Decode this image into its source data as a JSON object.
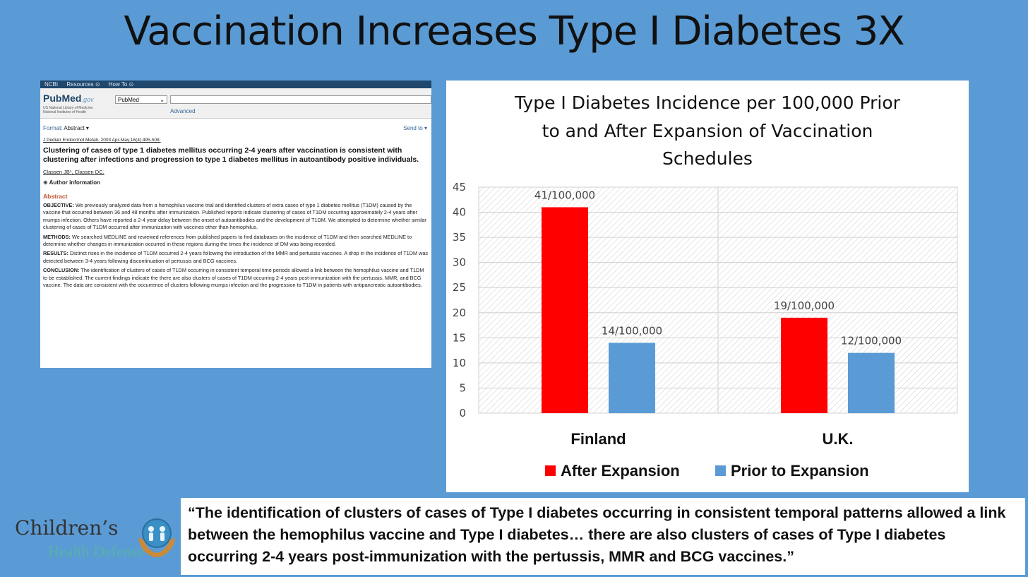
{
  "slide": {
    "title": "Vaccination Increases Type I Diabetes 3X",
    "quote": "“The identification of clusters of cases of Type I diabetes occurring in consistent temporal patterns allowed a link between the hemophilus vaccine and Type I diabetes…  there are also clusters of cases of Type I diabetes occurring 2-4 years post-immunization with the pertussis, MMR and BCG vaccines.”"
  },
  "logo": {
    "line1": "Children’s",
    "line2": "Health Defense"
  },
  "pubmed": {
    "topbar": [
      "NCBI",
      "Resources ⊙",
      "How To ⊙"
    ],
    "logo": "PubMed",
    "logo_suffix": ".gov",
    "org_line": "US National Library of Medicine National Institutes of Health",
    "db_select": "PubMed",
    "advanced": "Advanced",
    "format_label": "Format:",
    "format_value": "Abstract ▾",
    "send_to": "Send to ▾",
    "citation": "J Pediatr Endocrinol Metab. 2003 Apr-May;16(4):495-508.",
    "article_title": "Clustering of cases of type 1 diabetes mellitus occurring 2-4 years after vaccination is consistent with clustering after infections and progression to type 1 diabetes mellitus in autoantibody positive individuals.",
    "authors": "Classen JB¹, Classen DC.",
    "author_info": "⊕ Author information",
    "abstract_heading": "Abstract",
    "sections": [
      {
        "label": "OBJECTIVE:",
        "text": " We previously analyzed data from a hemophilus vaccine trial and identified clusters of extra cases of type 1 diabetes mellitus (T1DM) caused by the vaccine that occurred between 36 and 48 months after immunization. Published reports indicate clustering of cases of T1DM occurring approximately 2-4 years after mumps infection. Others have reported a 2-4 year delay between the onset of autoantibodies and the development of T1DM. We attempted to determine whether similar clustering of cases of T1DM occurred after immunization with vaccines other than hemophilus."
      },
      {
        "label": "METHODS:",
        "text": " We searched MEDLINE and reviewed references from published papers to find databases on the incidence of T1DM and then searched MEDLINE to determine whether changes in immunization occurred in these regions during the times the incidence of DM was being recorded."
      },
      {
        "label": "RESULTS:",
        "text": " Distinct rises in the incidence of T1DM occurred 2-4 years following the introduction of the MMR and pertussis vaccines. A drop in the incidence of T1DM was detected between 3-4 years following discontinuation of pertussis and BCG vaccines."
      },
      {
        "label": "CONCLUSION:",
        "text": " The identification of clusters of cases of T1DM occurring in consistent temporal time periods allowed a link between the hemophilus vaccine and T1DM to be established. The current findings indicate the there are also clusters of cases of T1DM occurring 2-4 years post-immunization with the pertussis, MMR, and BCG vaccine. The data are consistent with the occurrence of clusters following mumps infection and the progression to T1DM in patients with antipancreatic autoantibodies."
      }
    ]
  },
  "colors": {
    "after": "#ff0000",
    "prior": "#5b9bd5",
    "background": "#5b9bd5"
  },
  "chart_data": {
    "type": "bar",
    "title": "Type I Diabetes Incidence per 100,000 Prior to and After Expansion of Vaccination Schedules",
    "title_lines": [
      "Type I Diabetes Incidence per 100,000 Prior",
      "to and After Expansion of Vaccination",
      "Schedules"
    ],
    "categories": [
      "Finland",
      "U.K."
    ],
    "series": [
      {
        "name": "After Expansion",
        "values": [
          41,
          19
        ],
        "labels": [
          "41/100,000",
          "19/100,000"
        ],
        "color": "#ff0000"
      },
      {
        "name": "Prior to Expansion",
        "values": [
          14,
          12
        ],
        "labels": [
          "14/100,000",
          "12/100,000"
        ],
        "color": "#5b9bd5"
      }
    ],
    "yticks": [
      "0",
      "5",
      "10",
      "15",
      "20",
      "25",
      "30",
      "35",
      "40",
      "45"
    ],
    "ylim": [
      0,
      45
    ],
    "xlabel": "",
    "ylabel": "",
    "grid": true,
    "legend": "bottom"
  }
}
